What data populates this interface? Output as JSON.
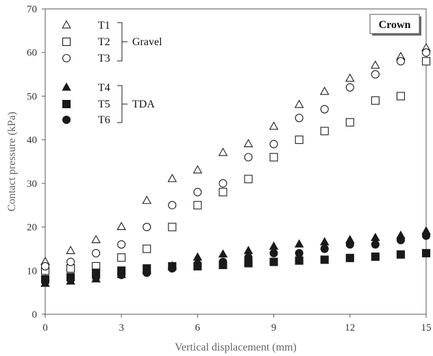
{
  "chart_data": {
    "type": "scatter",
    "xlabel": "Vertical displacement (mm)",
    "ylabel": "Contact pressure (kPa)",
    "xlim": [
      0,
      15
    ],
    "ylim": [
      0,
      70
    ],
    "xticks": [
      0,
      3,
      6,
      9,
      12,
      15
    ],
    "yticks": [
      0,
      10,
      20,
      30,
      40,
      50,
      60,
      70
    ],
    "grid": false,
    "legend_position": "top-left",
    "badge": "Crown",
    "groups": [
      {
        "label": "Gravel",
        "members": [
          "T1",
          "T2",
          "T3"
        ]
      },
      {
        "label": "TDA",
        "members": [
          "T4",
          "T5",
          "T6"
        ]
      }
    ],
    "series": [
      {
        "name": "T1",
        "marker": "triangle-open",
        "x": [
          0,
          1,
          2,
          3,
          4,
          5,
          6,
          7,
          8,
          9,
          10,
          11,
          12,
          13,
          14,
          15
        ],
        "y": [
          12,
          14.5,
          17,
          20,
          26,
          31,
          33,
          37,
          39,
          43,
          48,
          51,
          54,
          57,
          59,
          61
        ]
      },
      {
        "name": "T2",
        "marker": "square-open",
        "x": [
          0,
          1,
          2,
          3,
          4,
          5,
          6,
          7,
          8,
          9,
          10,
          11,
          12,
          13,
          14,
          15
        ],
        "y": [
          10,
          10.5,
          11,
          13,
          15,
          20,
          25,
          28,
          31,
          36,
          40,
          42,
          44,
          49,
          50,
          58
        ]
      },
      {
        "name": "T3",
        "marker": "circle-open",
        "x": [
          0,
          1,
          2,
          3,
          4,
          5,
          6,
          7,
          8,
          9,
          10,
          11,
          12,
          13,
          14,
          15
        ],
        "y": [
          11,
          12,
          14,
          16,
          20,
          25,
          28,
          30,
          36,
          39,
          45,
          47,
          52,
          55,
          58,
          60
        ]
      },
      {
        "name": "T4",
        "marker": "triangle-filled",
        "x": [
          0,
          1,
          2,
          3,
          4,
          5,
          6,
          7,
          8,
          9,
          10,
          11,
          12,
          13,
          14,
          15
        ],
        "y": [
          7,
          7.5,
          8,
          9,
          10,
          11,
          13,
          13.7,
          14.5,
          15.5,
          16,
          16.5,
          17,
          17.5,
          18,
          19
        ]
      },
      {
        "name": "T5",
        "marker": "square-filled",
        "x": [
          0,
          1,
          2,
          3,
          4,
          5,
          6,
          7,
          8,
          9,
          10,
          11,
          12,
          13,
          14,
          15
        ],
        "y": [
          8,
          8.5,
          9.5,
          10,
          10.5,
          11,
          11,
          11.3,
          11.7,
          12,
          12.3,
          12.5,
          12.9,
          13.2,
          13.7,
          14
        ]
      },
      {
        "name": "T6",
        "marker": "circle-filled",
        "x": [
          0,
          1,
          2,
          3,
          4,
          5,
          6,
          7,
          8,
          9,
          10,
          11,
          12,
          13,
          14,
          15
        ],
        "y": [
          7.5,
          8,
          8.5,
          9,
          9.5,
          10.5,
          11.5,
          12,
          13,
          14,
          14,
          15,
          16,
          16,
          17,
          18
        ]
      }
    ]
  }
}
